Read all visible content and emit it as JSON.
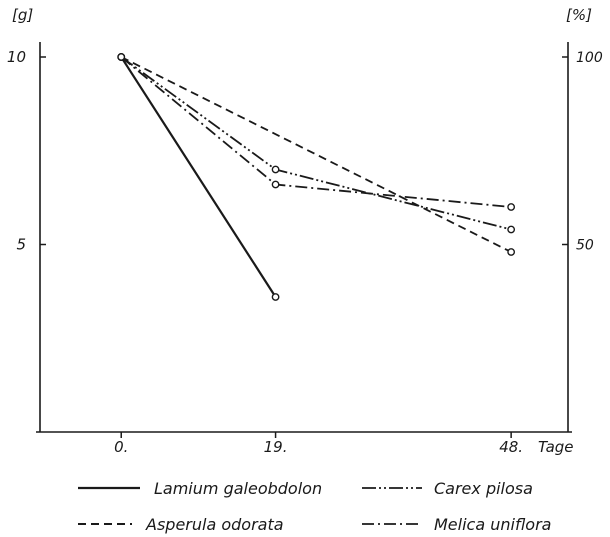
{
  "chart_data": {
    "type": "line",
    "title": "",
    "y_left_unit": "[g]",
    "y_right_unit": "[%]",
    "xlabel": "Tage",
    "x_ticks": [
      {
        "value": 0,
        "label": "0."
      },
      {
        "value": 19,
        "label": "19."
      },
      {
        "value": 48,
        "label": "48."
      }
    ],
    "y_left_ticks": [
      {
        "value": 10,
        "label": "10"
      },
      {
        "value": 5,
        "label": "5"
      }
    ],
    "y_right_ticks": [
      {
        "value": 10,
        "label": "100"
      },
      {
        "value": 5,
        "label": "50"
      }
    ],
    "xlim": [
      -10,
      55
    ],
    "ylim": [
      0,
      10.4
    ],
    "grid": false,
    "legend_position": "bottom",
    "series": [
      {
        "name": "Lamium galeobdolon",
        "dash": "solid",
        "points": [
          [
            0,
            10.0
          ],
          [
            19,
            3.6
          ]
        ]
      },
      {
        "name": "Carex pilosa",
        "dash": "dash-dot-dot",
        "points": [
          [
            0,
            10.0
          ],
          [
            19,
            7.0
          ],
          [
            48,
            5.4
          ]
        ]
      },
      {
        "name": "Asperula odorata",
        "dash": "dashed",
        "points": [
          [
            0,
            10.0
          ],
          [
            48,
            4.8
          ]
        ]
      },
      {
        "name": "Melica uniflora",
        "dash": "dash-dot",
        "points": [
          [
            0,
            10.0
          ],
          [
            19,
            6.6
          ],
          [
            48,
            6.0
          ]
        ]
      }
    ]
  }
}
